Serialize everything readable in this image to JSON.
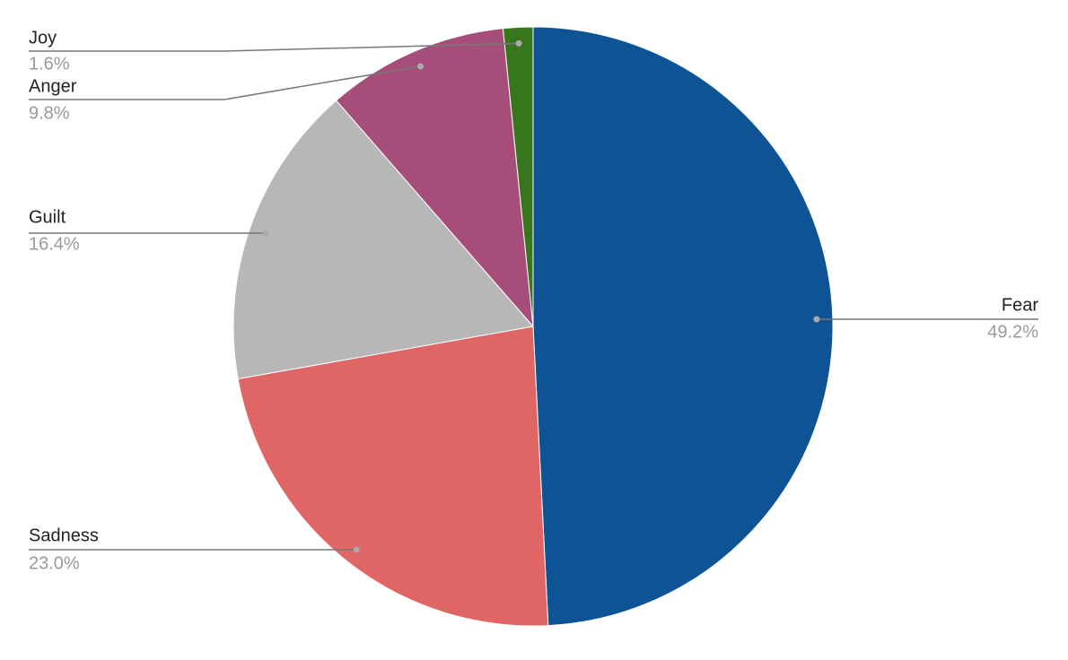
{
  "chart_data": {
    "type": "pie",
    "categories": [
      "Fear",
      "Sadness",
      "Guilt",
      "Anger",
      "Joy"
    ],
    "values": [
      49.2,
      23.0,
      16.4,
      9.8,
      1.6
    ],
    "value_labels": [
      "49.2%",
      "23.0%",
      "16.4%",
      "9.8%",
      "1.6%"
    ],
    "colors": [
      "#0e5394",
      "#e06666",
      "#b7b7b7",
      "#a64d79",
      "#38761d"
    ]
  }
}
